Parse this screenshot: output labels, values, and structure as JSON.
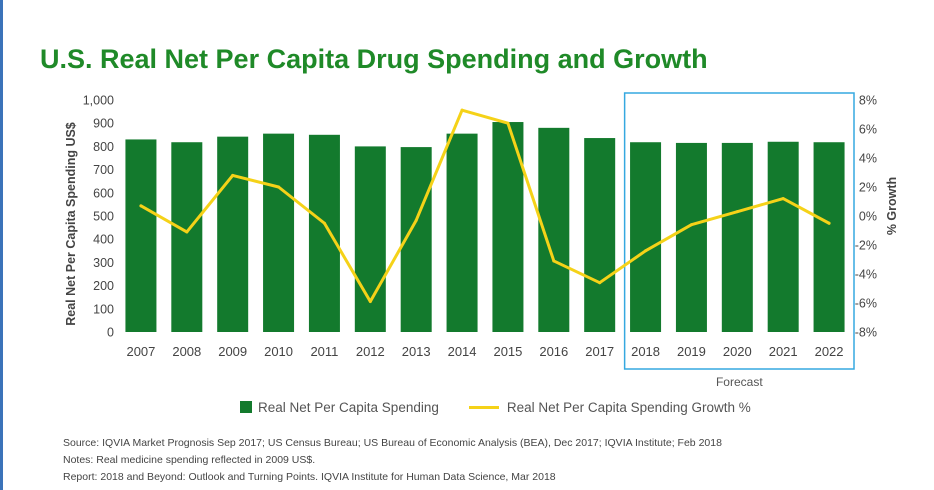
{
  "title": "U.S. Real Net Per Capita Drug Spending and Growth",
  "colors": {
    "bar": "#137a2d",
    "line": "#f5d218",
    "title": "#1f8a28",
    "forecast_box": "#35a8e0",
    "axis_text": "#444444"
  },
  "chart_data": {
    "type": "bar",
    "categories": [
      "2007",
      "2008",
      "2009",
      "2010",
      "2011",
      "2012",
      "2013",
      "2014",
      "2015",
      "2016",
      "2017",
      "2018",
      "2019",
      "2020",
      "2021",
      "2022"
    ],
    "series": [
      {
        "name": "Real Net Per Capita Spending",
        "type": "bar",
        "axis": "left",
        "values": [
          830,
          818,
          842,
          855,
          850,
          800,
          797,
          855,
          905,
          880,
          836,
          818,
          815,
          815,
          820,
          818
        ]
      },
      {
        "name": "Real Net Per Capita Spending Growth %",
        "type": "line",
        "axis": "right",
        "values": [
          0.7,
          -1.1,
          2.8,
          2.0,
          -0.5,
          -5.9,
          -0.3,
          7.3,
          6.4,
          -3.1,
          -4.6,
          -2.4,
          -0.6,
          0.3,
          1.2,
          -0.5
        ]
      }
    ],
    "ylabel": "Real Net Per Capita Spending US$",
    "ylim": [
      0,
      1000
    ],
    "yticks": [
      "0",
      "100",
      "200",
      "300",
      "400",
      "500",
      "600",
      "700",
      "800",
      "900",
      "1,000"
    ],
    "y2label": "% Growth",
    "y2lim": [
      -8,
      8
    ],
    "y2ticks": [
      "-8%",
      "-6%",
      "-4%",
      "-2%",
      "0%",
      "2%",
      "4%",
      "6%",
      "8%"
    ],
    "forecast_label": "Forecast",
    "forecast_categories": [
      "2018",
      "2022"
    ],
    "grid": false,
    "legend_position": "bottom"
  },
  "legend": {
    "bar_label": "Real Net Per Capita Spending",
    "line_label": "Real Net Per Capita Spending Growth %"
  },
  "notes": {
    "source": "Source: IQVIA Market Prognosis Sep 2017; US Census Bureau; US Bureau of Economic Analysis (BEA), Dec 2017; IQVIA Institute; Feb 2018",
    "notes": "Notes: Real medicine spending reflected in 2009 US$.",
    "report": "Report: 2018 and Beyond: Outlook and Turning Points. IQVIA Institute for Human Data Science, Mar 2018"
  }
}
